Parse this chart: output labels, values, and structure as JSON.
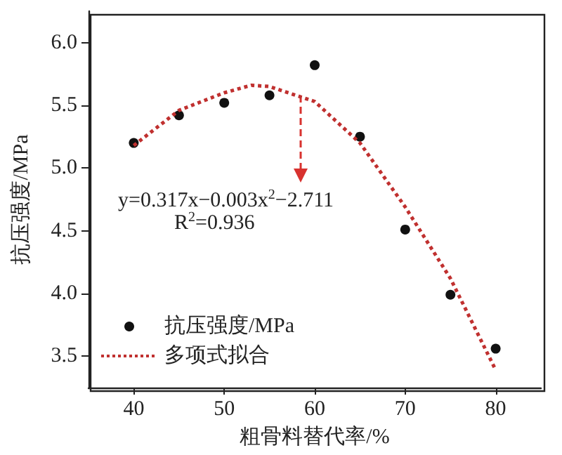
{
  "chart_data": {
    "type": "scatter",
    "xlabel": "粗骨料替代率/%",
    "ylabel": "抗压强度/MPa",
    "xlim": [
      35,
      85
    ],
    "xticks": [
      40,
      50,
      60,
      70,
      80
    ],
    "ylim": [
      3.25,
      6.25
    ],
    "yticks": [
      3.5,
      {
        "value": 4,
        "label": "4.0"
      },
      4.5,
      {
        "value": 5,
        "label": "5.0"
      },
      5.5,
      {
        "value": 6,
        "label": "6.0"
      }
    ],
    "grid": false,
    "legend": "bottom left",
    "marker": "circle",
    "annotations": [
      "y=0.317x−0.003x$^{2}$−2.711",
      "R$^{2}$=0.936"
    ],
    "series": [
      {
        "name": "抗压强度/MPa",
        "color": "#111111",
        "x": [
          40,
          45,
          50,
          55,
          60,
          65,
          70,
          75,
          80
        ],
        "values": [
          5.2,
          5.42,
          5.52,
          5.58,
          5.82,
          5.25,
          4.51,
          3.99,
          3.56
        ]
      },
      {
        "name": "多项式拟合",
        "type": "line",
        "line_style": "dotted",
        "marker": "none",
        "color": "#c0302f",
        "x": [
          40,
          45,
          50,
          53,
          55,
          60,
          65,
          70,
          75,
          80
        ],
        "values": [
          5.18,
          5.46,
          5.6,
          5.66,
          5.65,
          5.53,
          5.2,
          4.69,
          4.12,
          3.39
        ]
      }
    ]
  }
}
